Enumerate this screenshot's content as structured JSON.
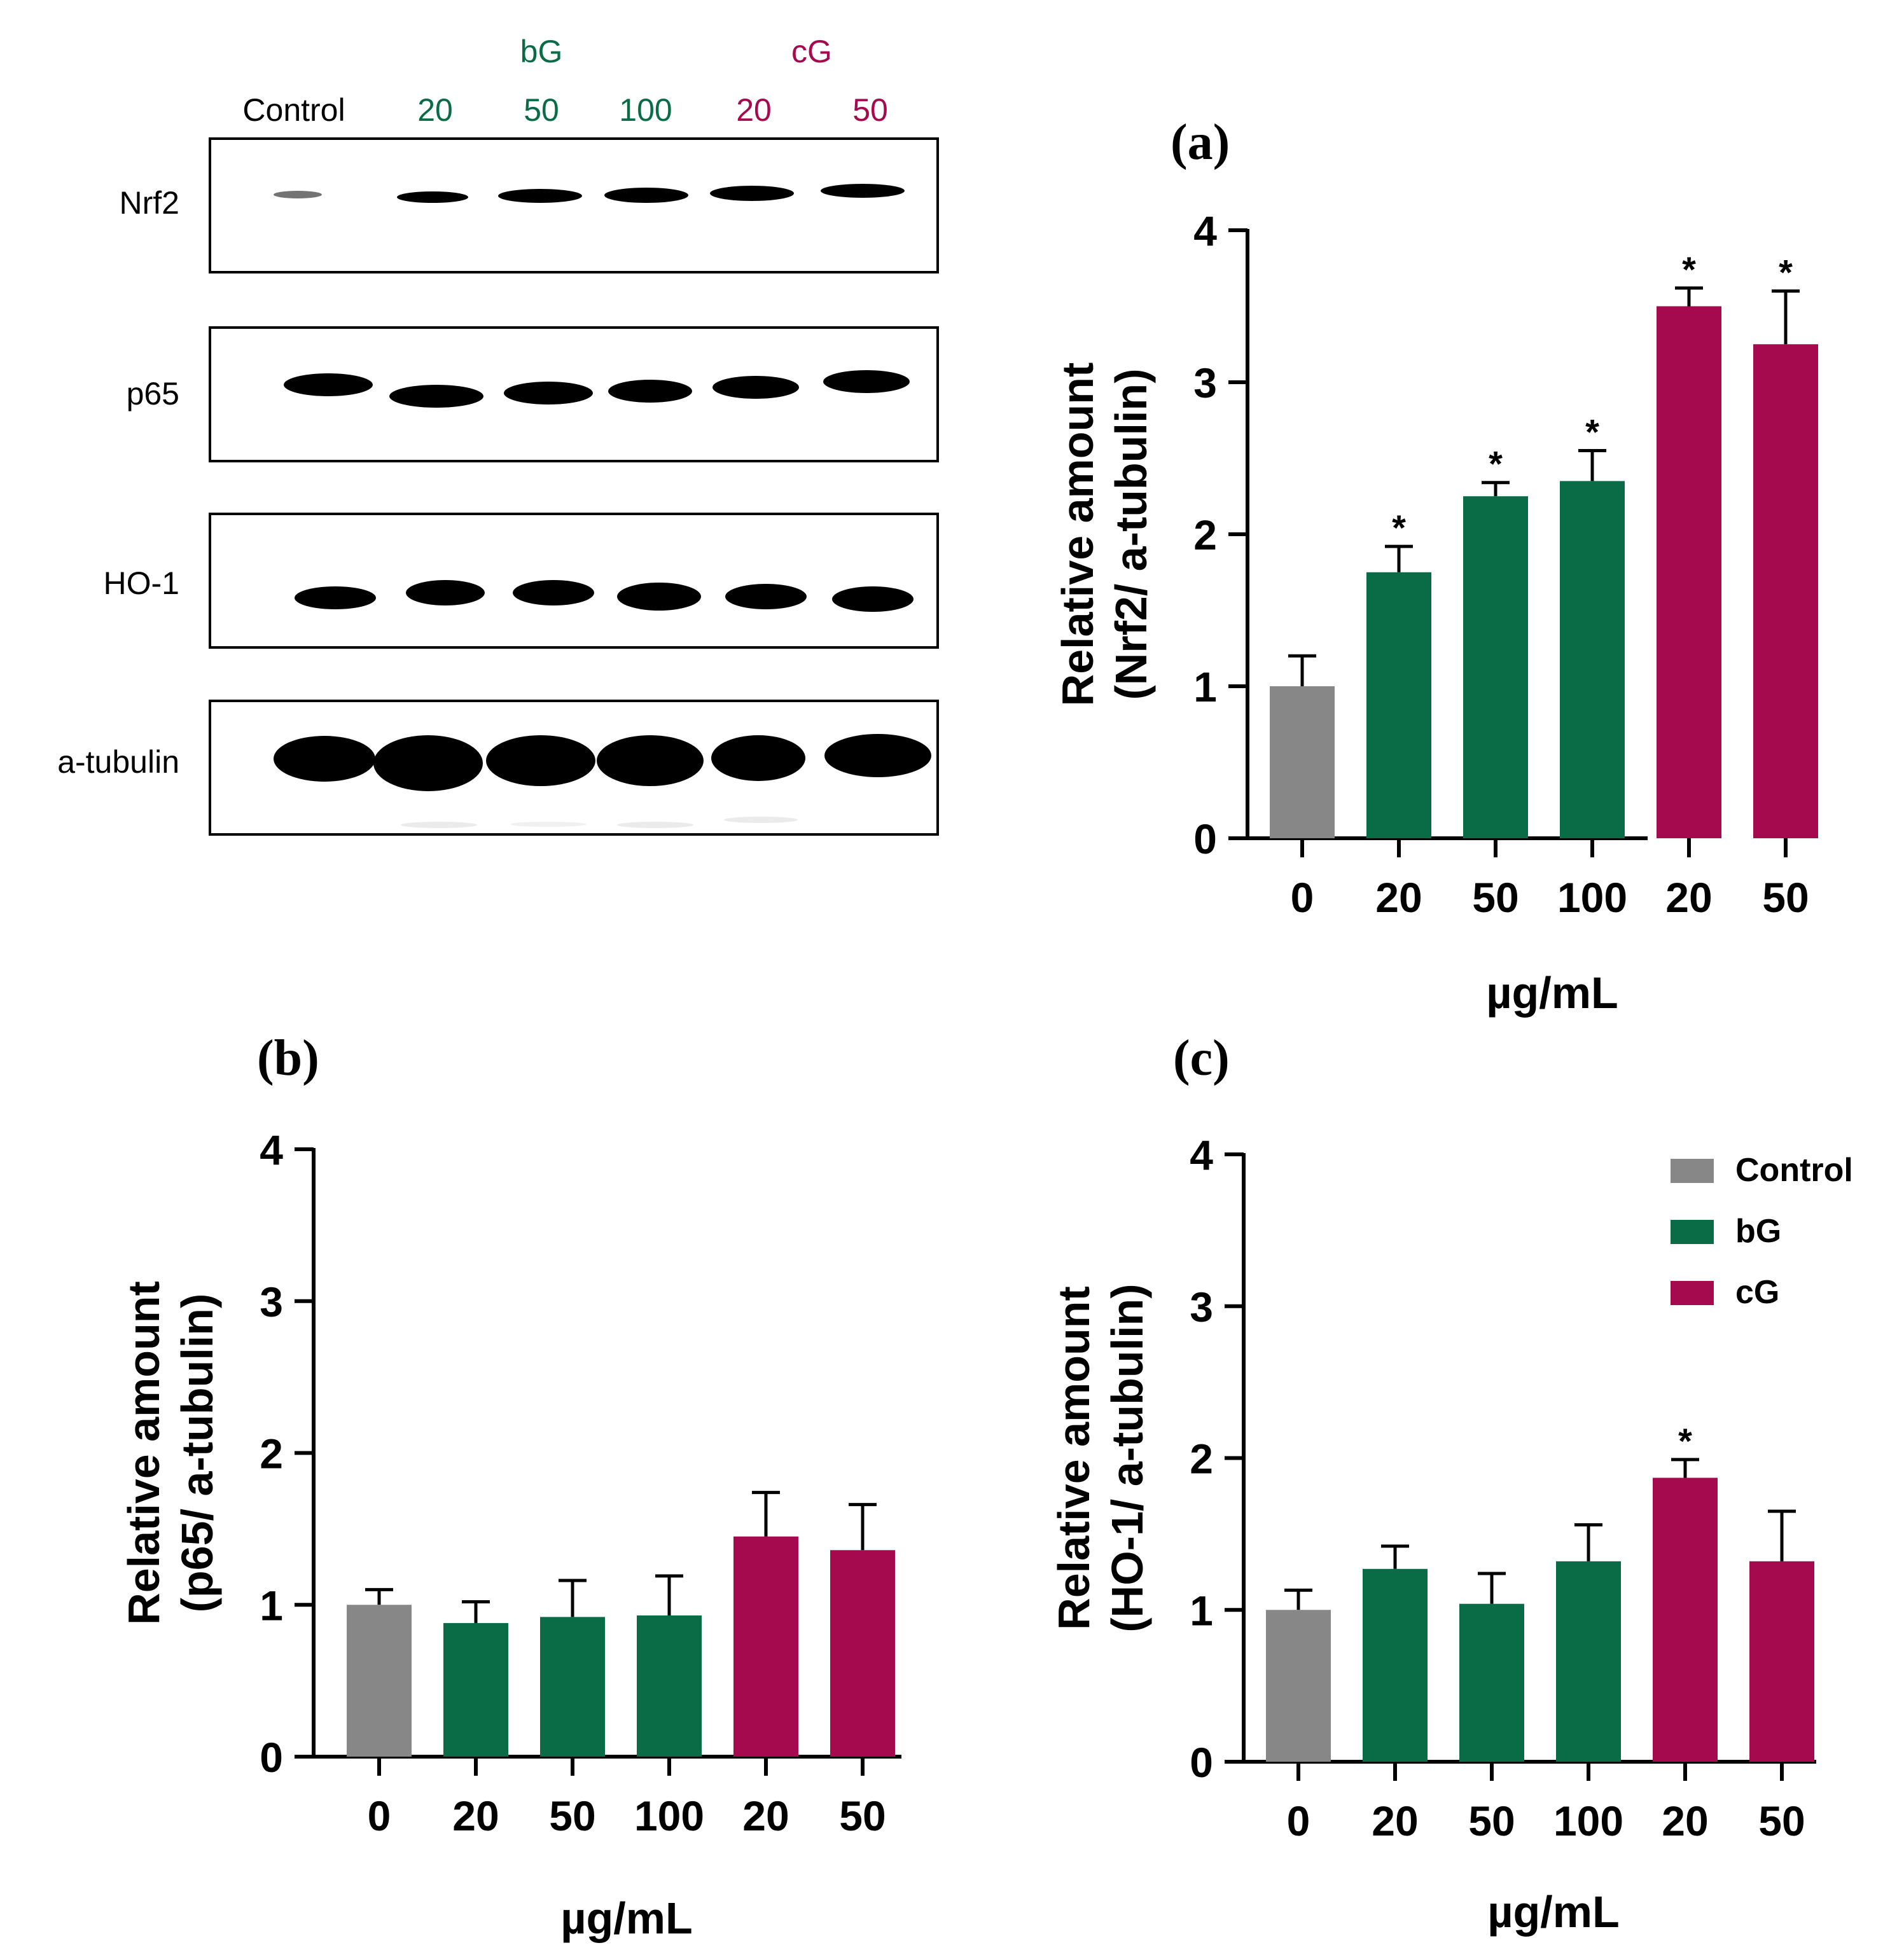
{
  "colors": {
    "control": "#878787",
    "bG": "#0a6b47",
    "cG": "#a5094e",
    "axis": "#000000"
  },
  "western_blot": {
    "group_labels": {
      "bG": "bG",
      "cG": "cG"
    },
    "lane_labels": [
      "Control",
      "20",
      "50",
      "100",
      "20",
      "50"
    ],
    "lane_groups": [
      "control",
      "bG",
      "bG",
      "bG",
      "cG",
      "cG"
    ],
    "rows": [
      "Nrf2",
      "p65",
      "HO-1",
      "a-tubulin"
    ]
  },
  "legend": [
    {
      "label": "Control",
      "group": "control"
    },
    {
      "label": "bG",
      "group": "bG"
    },
    {
      "label": "cG",
      "group": "cG"
    }
  ],
  "chart_data": [
    {
      "type": "bar",
      "panel": "(a)",
      "ylabel_line1": "Relative amount",
      "ylabel_line2": "(Nrf2/ a-tubulin)",
      "xlabel": "µg/mL",
      "ylim": [
        0,
        4
      ],
      "yticks": [
        "0",
        "1",
        "2",
        "3",
        "4"
      ],
      "categories": [
        "0",
        "20",
        "50",
        "100",
        "20",
        "50"
      ],
      "groups": [
        "control",
        "bG",
        "bG",
        "bG",
        "cG",
        "cG"
      ],
      "values": [
        1.0,
        1.75,
        2.25,
        2.35,
        3.5,
        3.25
      ],
      "errors": [
        0.2,
        0.17,
        0.09,
        0.2,
        0.12,
        0.35
      ],
      "significance": [
        "",
        "*",
        "*",
        "*",
        "*",
        "*"
      ]
    },
    {
      "type": "bar",
      "panel": "(b)",
      "ylabel_line1": "Relative amount",
      "ylabel_line2": "(p65/ a-tubulin)",
      "xlabel": "µg/mL",
      "ylim": [
        0,
        4
      ],
      "yticks": [
        "0",
        "1",
        "2",
        "3",
        "4"
      ],
      "categories": [
        "0",
        "20",
        "50",
        "100",
        "20",
        "50"
      ],
      "groups": [
        "control",
        "bG",
        "bG",
        "bG",
        "cG",
        "cG"
      ],
      "values": [
        1.0,
        0.88,
        0.92,
        0.93,
        1.45,
        1.36
      ],
      "errors": [
        0.1,
        0.14,
        0.24,
        0.26,
        0.29,
        0.3
      ],
      "significance": [
        "",
        "",
        "",
        "",
        "",
        ""
      ]
    },
    {
      "type": "bar",
      "panel": "(c)",
      "ylabel_line1": "Relative amount",
      "ylabel_line2": "(HO-1/ a-tubulin)",
      "xlabel": "µg/mL",
      "ylim": [
        0,
        4
      ],
      "yticks": [
        "0",
        "1",
        "2",
        "3",
        "4"
      ],
      "categories": [
        "0",
        "20",
        "50",
        "100",
        "20",
        "50"
      ],
      "groups": [
        "control",
        "bG",
        "bG",
        "bG",
        "cG",
        "cG"
      ],
      "values": [
        1.0,
        1.27,
        1.04,
        1.32,
        1.87,
        1.32
      ],
      "errors": [
        0.13,
        0.15,
        0.2,
        0.24,
        0.12,
        0.33
      ],
      "significance": [
        "",
        "",
        "",
        "",
        "*",
        ""
      ]
    }
  ]
}
